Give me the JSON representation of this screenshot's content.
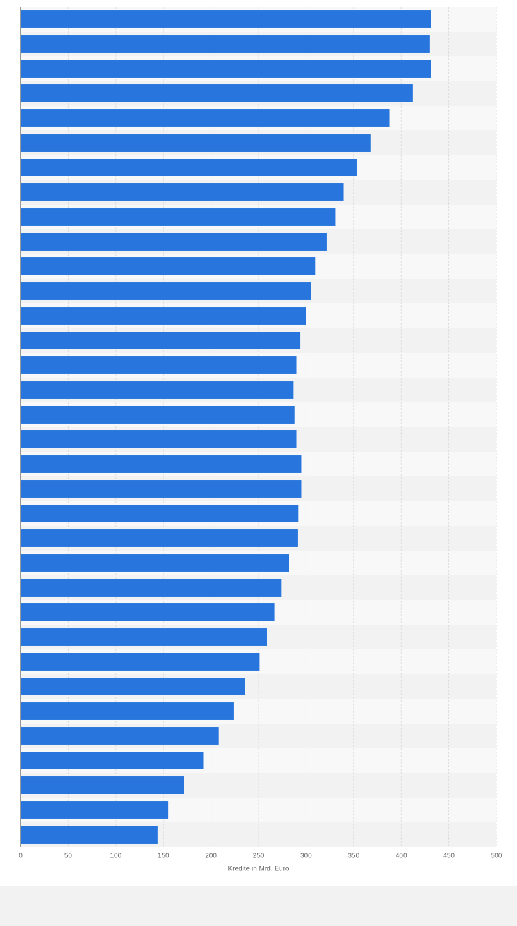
{
  "chart_data": {
    "type": "bar",
    "orientation": "horizontal",
    "xlabel": "Kredite in Mrd. Euro",
    "categories": [
      null,
      null,
      null,
      null,
      null,
      null,
      null,
      null,
      null,
      null,
      null,
      null,
      null,
      null,
      null,
      null,
      null,
      null,
      null,
      null,
      null,
      null,
      null,
      null,
      null,
      null,
      null,
      null,
      null,
      null,
      null,
      null,
      null,
      null
    ],
    "values": [
      431,
      430,
      431,
      412,
      388,
      368,
      353,
      339,
      331,
      322,
      310,
      305,
      300,
      294,
      290,
      287,
      288,
      290,
      295,
      295,
      292,
      291,
      282,
      274,
      267,
      259,
      251,
      236,
      224,
      208,
      192,
      172,
      155,
      144
    ],
    "color": "#2876dd",
    "xlim": [
      0,
      500
    ],
    "xticks": [
      0,
      50,
      100,
      150,
      200,
      250,
      300,
      350,
      400,
      450,
      500
    ],
    "grid": true
  }
}
